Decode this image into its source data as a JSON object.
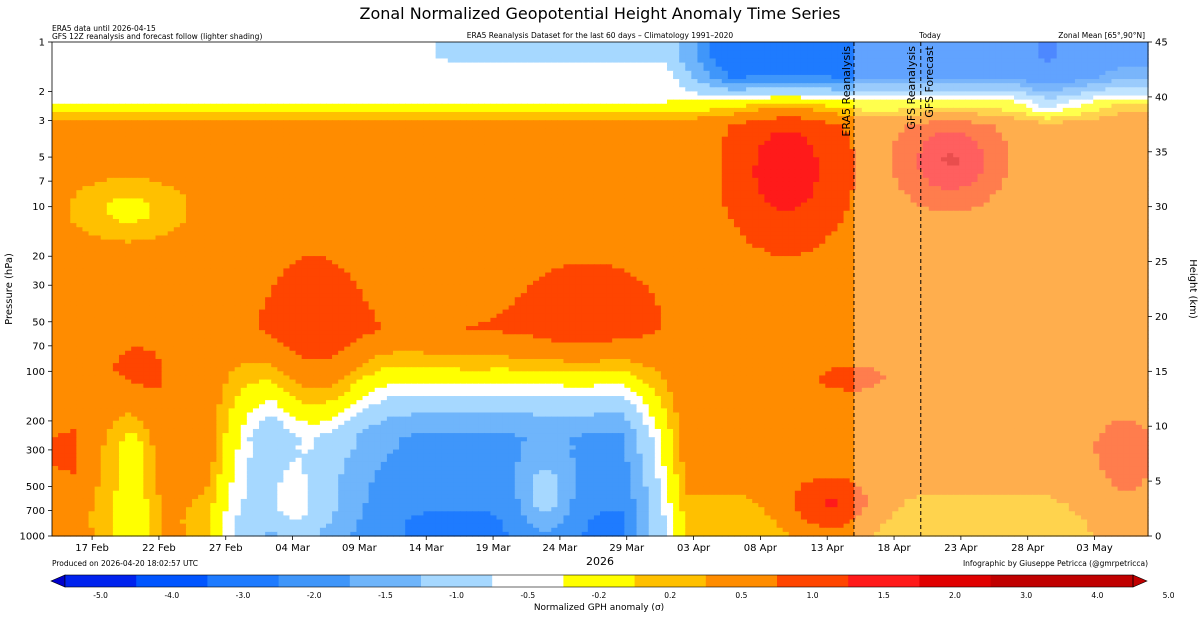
{
  "header": {
    "title": "Zonal Normalized Geopotential Height Anomaly Time Series",
    "note_line1": "ERA5 data until 2026-04-15",
    "note_line2": "GFS 12Z reanalysis and forecast follow (lighter shading)",
    "subtitle": "ERA5 Reanalysis Dataset for the last 60 days – Climatology 1991–2020",
    "today_label": "Today",
    "region": "Zonal Mean [65°,90°N]"
  },
  "footer": {
    "produced": "Produced on 2026-04-20 18:02:57 UTC",
    "credit": "Infographic by Giuseppe Petricca (@gmrpetricca)"
  },
  "chart_data": {
    "type": "heatmap",
    "title": "Zonal Normalized Geopotential Height Anomaly Time Series",
    "xlabel": "2026",
    "ylabel": "Pressure (hPa)",
    "y2label": "Height (km)",
    "x_ticks": [
      "17 Feb",
      "22 Feb",
      "27 Feb",
      "04 Mar",
      "09 Mar",
      "14 Mar",
      "19 Mar",
      "24 Mar",
      "29 Mar",
      "03 Apr",
      "08 Apr",
      "13 Apr",
      "18 Apr",
      "23 Apr",
      "28 Apr",
      "03 May"
    ],
    "x_range": [
      "2026-02-14",
      "2026-05-07"
    ],
    "y_scale": "log",
    "y_range_hPa": [
      1000,
      1
    ],
    "y_ticks": [
      1000,
      700,
      500,
      300,
      200,
      100,
      70,
      50,
      30,
      20,
      10,
      7,
      5,
      3,
      2,
      1
    ],
    "y2_ticks": [
      0,
      5,
      10,
      15,
      20,
      25,
      30,
      35,
      40,
      45
    ],
    "vlines": [
      {
        "label": "ERA5 Reanalysis",
        "date": "2026-04-15"
      },
      {
        "label": "GFS Reanalysis",
        "date": "2026-04-20"
      },
      {
        "label": "GFS Forecast",
        "date": "2026-04-20"
      }
    ],
    "colorbar": {
      "label": "Normalized GPH anomaly (σ)",
      "ticks": [
        "-5.0",
        "-4.0",
        "-3.0",
        "-2.0",
        "-1.5",
        "-1.0",
        "-0.5",
        "-0.2",
        "0.2",
        "0.5",
        "1.0",
        "1.5",
        "2.0",
        "3.0",
        "4.0",
        "5.0"
      ],
      "colors": [
        "#0000cc",
        "#0022ee",
        "#0055ff",
        "#1e7bff",
        "#3f96fa",
        "#6fb5fb",
        "#a6d8ff",
        "#ffffff",
        "#ffff00",
        "#ffc000",
        "#ff8c00",
        "#ff4500",
        "#ff1a1a",
        "#e00000",
        "#c00000"
      ],
      "extend": "both"
    },
    "grid": false
  }
}
